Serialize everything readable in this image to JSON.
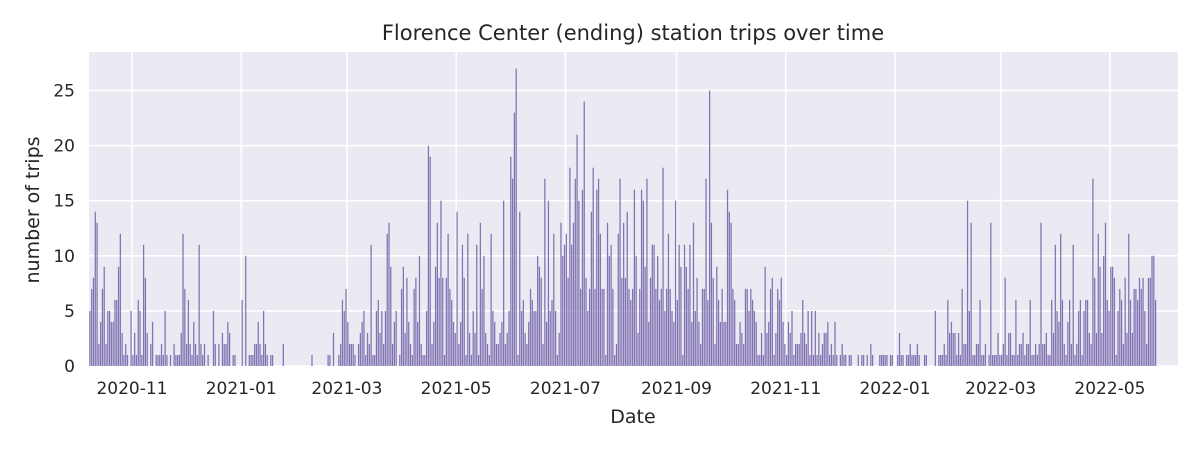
{
  "chart_data": {
    "type": "bar",
    "title": "Florence Center (ending) station trips over time",
    "xlabel": "Date",
    "ylabel": "number of trips",
    "xlim": [
      "2020-10-08",
      "2022-06-08"
    ],
    "ylim": [
      0,
      28.5
    ],
    "x_ticks": [
      "2020-11-01",
      "2021-01-01",
      "2021-03-01",
      "2021-05-01",
      "2021-07-01",
      "2021-09-01",
      "2021-11-01",
      "2022-01-01",
      "2022-03-01",
      "2022-05-01"
    ],
    "x_tick_labels": [
      "2020-11",
      "2021-01",
      "2021-03",
      "2021-05",
      "2021-07",
      "2021-09",
      "2021-11",
      "2022-01",
      "2022-03",
      "2022-05"
    ],
    "y_ticks": [
      0,
      5,
      10,
      15,
      20,
      25
    ],
    "grid": true,
    "bar_color": "#8172B2",
    "background_color": "#EAEAF2",
    "start_date": "2020-10-08",
    "values": [
      5,
      7,
      8,
      14,
      13,
      2,
      4,
      7,
      9,
      2,
      5,
      5,
      4,
      4,
      6,
      6,
      9,
      12,
      3,
      1,
      2,
      1,
      0,
      5,
      1,
      3,
      1,
      6,
      5,
      1,
      11,
      8,
      3,
      0,
      2,
      4,
      0,
      1,
      1,
      1,
      2,
      1,
      5,
      1,
      0,
      1,
      0,
      2,
      1,
      1,
      1,
      3,
      12,
      7,
      2,
      6,
      2,
      1,
      4,
      2,
      1,
      11,
      2,
      1,
      2,
      0,
      1,
      0,
      0,
      5,
      2,
      0,
      2,
      0,
      3,
      2,
      2,
      4,
      3,
      0,
      1,
      1,
      0,
      0,
      0,
      6,
      0,
      10,
      0,
      1,
      1,
      1,
      2,
      2,
      4,
      2,
      1,
      5,
      2,
      1,
      0,
      1,
      1,
      0,
      0,
      0,
      0,
      0,
      2,
      0,
      0,
      0,
      0,
      0,
      0,
      0,
      0,
      0,
      0,
      0,
      0,
      0,
      0,
      0,
      1,
      0,
      0,
      0,
      0,
      0,
      0,
      0,
      0,
      1,
      1,
      0,
      3,
      0,
      0,
      1,
      2,
      6,
      5,
      7,
      4,
      2,
      2,
      2,
      1,
      0,
      2,
      3,
      4,
      5,
      1,
      3,
      2,
      11,
      1,
      1,
      5,
      6,
      3,
      5,
      2,
      5,
      12,
      13,
      9,
      2,
      4,
      5,
      0,
      1,
      7,
      9,
      3,
      8,
      4,
      2,
      1,
      7,
      8,
      4,
      10,
      2,
      1,
      1,
      5,
      20,
      19,
      2,
      4,
      9,
      13,
      8,
      15,
      8,
      1,
      8,
      12,
      7,
      6,
      4,
      3,
      14,
      2,
      4,
      11,
      8,
      1,
      12,
      3,
      1,
      5,
      3,
      11,
      1,
      13,
      7,
      10,
      3,
      2,
      1,
      12,
      5,
      4,
      2,
      2,
      3,
      4,
      15,
      2,
      3,
      5,
      19,
      17,
      23,
      27,
      1,
      14,
      5,
      6,
      3,
      2,
      4,
      7,
      6,
      5,
      5,
      10,
      9,
      8,
      2,
      17,
      4,
      15,
      5,
      6,
      12,
      5,
      1,
      3,
      13,
      10,
      11,
      12,
      8,
      18,
      11,
      13,
      17,
      21,
      15,
      7,
      16,
      24,
      8,
      5,
      7,
      14,
      18,
      7,
      16,
      17,
      12,
      7,
      7,
      1,
      13,
      10,
      11,
      7,
      1,
      2,
      12,
      17,
      8,
      13,
      8,
      14,
      7,
      6,
      7,
      16,
      10,
      3,
      7,
      16,
      15,
      9,
      17,
      4,
      8,
      11,
      11,
      7,
      10,
      6,
      7,
      18,
      5,
      7,
      12,
      7,
      5,
      4,
      15,
      6,
      11,
      9,
      1,
      11,
      9,
      7,
      11,
      4,
      13,
      5,
      8,
      4,
      2,
      7,
      7,
      17,
      6,
      25,
      13,
      8,
      2,
      9,
      6,
      4,
      7,
      4,
      4,
      16,
      14,
      13,
      7,
      6,
      2,
      2,
      4,
      3,
      2,
      7,
      7,
      5,
      7,
      6,
      5,
      4,
      1,
      1,
      3,
      1,
      9,
      3,
      4,
      7,
      8,
      1,
      3,
      7,
      6,
      8,
      4,
      2,
      1,
      4,
      3,
      5,
      1,
      2,
      2,
      2,
      3,
      6,
      3,
      2,
      5,
      1,
      5,
      1,
      5,
      1,
      3,
      1,
      2,
      3,
      3,
      4,
      1,
      2,
      1,
      4,
      1,
      0,
      1,
      2,
      1,
      1,
      0,
      1,
      1,
      0,
      0,
      0,
      1,
      0,
      1,
      1,
      0,
      1,
      0,
      2,
      1,
      0,
      0,
      0,
      1,
      1,
      1,
      1,
      1,
      0,
      1,
      1,
      0,
      0,
      1,
      3,
      1,
      1,
      0,
      1,
      1,
      2,
      1,
      1,
      1,
      2,
      1,
      0,
      0,
      1,
      1,
      0,
      0,
      0,
      0,
      5,
      0,
      1,
      1,
      1,
      2,
      1,
      6,
      3,
      4,
      3,
      3,
      1,
      3,
      1,
      7,
      2,
      2,
      15,
      5,
      13,
      1,
      1,
      2,
      2,
      6,
      1,
      1,
      2,
      0,
      1,
      13,
      1,
      1,
      1,
      3,
      1,
      1,
      2,
      8,
      1,
      3,
      3,
      1,
      1,
      6,
      1,
      2,
      2,
      3,
      1,
      2,
      2,
      6,
      1,
      1,
      2,
      1,
      2,
      13,
      2,
      2,
      3,
      1,
      1,
      6,
      3,
      11,
      5,
      4,
      12,
      6,
      2,
      1,
      4,
      6,
      2,
      11,
      1,
      2,
      5,
      6,
      1,
      5,
      6,
      6,
      3,
      2,
      17,
      8,
      3,
      12,
      9,
      3,
      10,
      13,
      6,
      5,
      9,
      9,
      8,
      1,
      5,
      7,
      6,
      2,
      8,
      3,
      12,
      6,
      3,
      7,
      7,
      6,
      8,
      7,
      8,
      5,
      2,
      8,
      8,
      10,
      10,
      6
    ]
  }
}
